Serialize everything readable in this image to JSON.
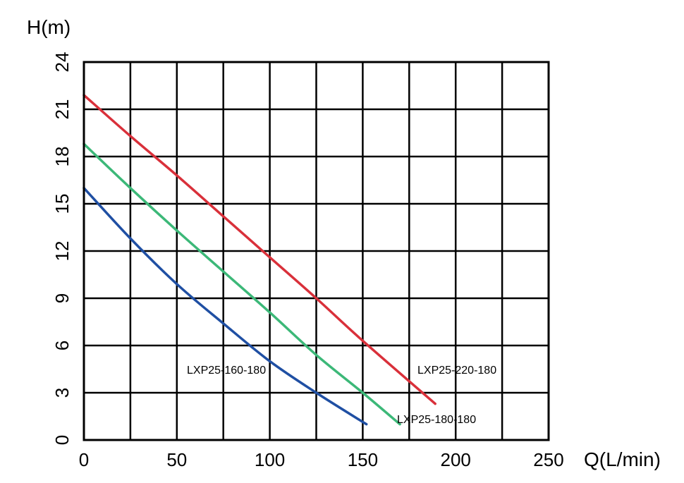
{
  "chart_data": {
    "type": "line",
    "xlabel": "Q(L/min)",
    "ylabel": "H(m)",
    "xlim": [
      0,
      250
    ],
    "ylim": [
      0,
      24
    ],
    "xticks": [
      0,
      50,
      100,
      150,
      200,
      250
    ],
    "yticks": [
      0,
      3,
      6,
      9,
      12,
      15,
      18,
      21,
      24
    ],
    "grid": true,
    "series": [
      {
        "name": "LXP25-160-180",
        "color": "#1f4fa3",
        "x": [
          0,
          25,
          50,
          75,
          100,
          125,
          152
        ],
        "y": [
          16.0,
          12.8,
          9.9,
          7.4,
          5.0,
          3.0,
          1.0
        ]
      },
      {
        "name": "LXP25-180-180",
        "color": "#3cb878",
        "x": [
          0,
          25,
          50,
          75,
          100,
          125,
          150,
          170
        ],
        "y": [
          18.8,
          16.0,
          13.3,
          10.7,
          8.1,
          5.4,
          3.0,
          1.0
        ]
      },
      {
        "name": "LXP25-220-180",
        "color": "#d9303a",
        "x": [
          0,
          25,
          50,
          75,
          100,
          125,
          150,
          189
        ],
        "y": [
          21.9,
          19.3,
          16.8,
          14.2,
          11.6,
          9.0,
          6.3,
          2.3
        ]
      }
    ]
  }
}
